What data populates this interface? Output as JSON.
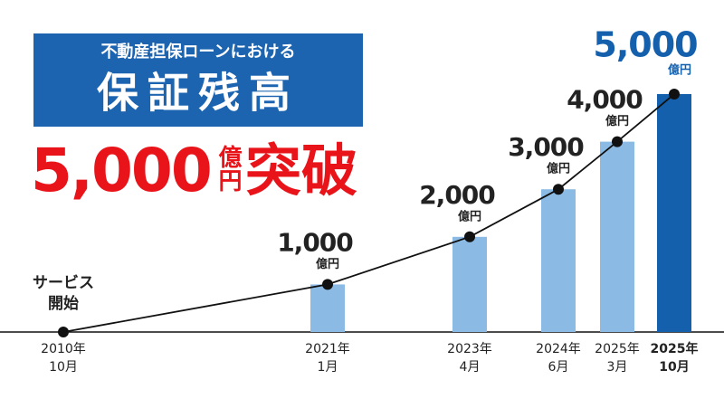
{
  "chart_data": {
    "type": "bar-line",
    "title_lines": [
      "不動産担保ローンにおける",
      "保証残高"
    ],
    "headline": {
      "number": "5,000",
      "unit": "億円",
      "suffix": "突破"
    },
    "annotation_lines": [
      "サービス",
      "開始"
    ],
    "unit": "億円",
    "categories": [
      [
        "2010年",
        "10月"
      ],
      [
        "2021年",
        "1月"
      ],
      [
        "2023年",
        "4月"
      ],
      [
        "2024年",
        "6月"
      ],
      [
        "2025年",
        "3月"
      ],
      [
        "2025年",
        "10月"
      ]
    ],
    "values": [
      0,
      1000,
      2000,
      3000,
      4000,
      5000
    ],
    "value_labels": [
      null,
      "1,000",
      "2,000",
      "3,000",
      "4,000",
      "5,000"
    ],
    "ylim": [
      0,
      5000
    ],
    "color": "#8bbbe5",
    "last_color": "#1560ad",
    "line_color": "#111111"
  }
}
